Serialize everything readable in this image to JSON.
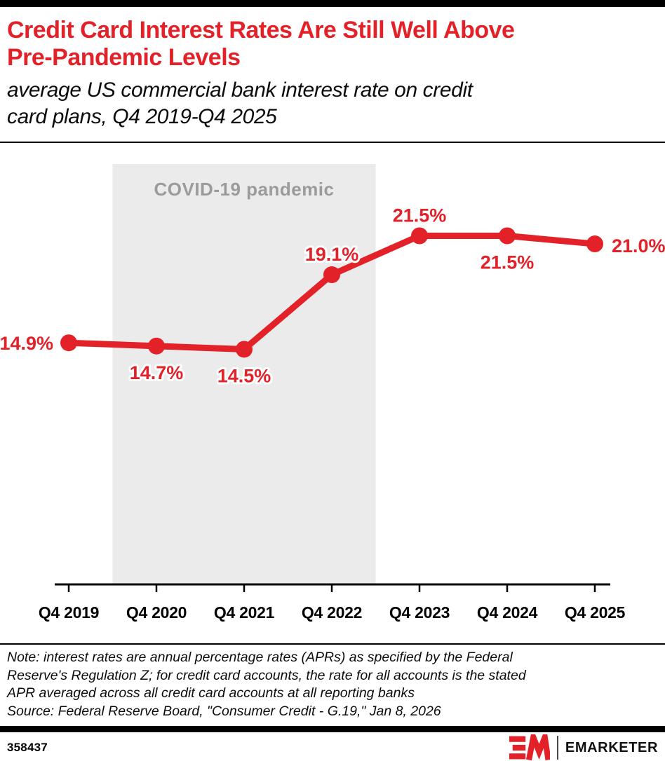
{
  "header": {
    "title_lines": [
      "Credit Card Interest Rates Are Still Well Above",
      "Pre-Pandemic Levels"
    ],
    "subtitle_lines": [
      "average US commercial bank interest rate on credit",
      "card plans, Q4 2019-Q4 2025"
    ]
  },
  "chart_data": {
    "type": "line",
    "title": "Credit Card Interest Rates Are Still Well Above Pre-Pandemic Levels",
    "subtitle": "average US commercial bank interest rate on credit card plans, Q4 2019-Q4 2025",
    "categories": [
      "Q4 2019",
      "Q4 2020",
      "Q4 2021",
      "Q4 2022",
      "Q4 2023",
      "Q4 2024",
      "Q4 2025"
    ],
    "series": [
      {
        "name": "Average US commercial bank interest rate on credit card plans",
        "values": [
          14.9,
          14.7,
          14.5,
          19.1,
          21.5,
          21.5,
          21.0
        ]
      }
    ],
    "data_labels": [
      "14.9%",
      "14.7%",
      "14.5%",
      "19.1%",
      "21.5%",
      "21.5%",
      "21.0%"
    ],
    "label_positions": [
      "left",
      "below",
      "below",
      "above",
      "above",
      "below",
      "right"
    ],
    "unit": "%",
    "ylim": [
      0,
      27
    ],
    "grid": false,
    "legend": "none",
    "annotation_band": {
      "label": "COVID-19 pandemic",
      "from_index": 0.5,
      "to_index": 3.5
    },
    "line_color": "#E32128",
    "band_color": "#EBEBEB",
    "band_label_color": "#9B9B9B"
  },
  "footer": {
    "note_lines": [
      "Note: interest rates are annual percentage rates (APRs) as specified by the Federal",
      "Reserve's Regulation Z; for credit card accounts, the rate for all accounts is the stated",
      "APR averaged across all credit card accounts at all reporting banks"
    ],
    "source": "Source: Federal Reserve Board, \"Consumer Credit - G.19,\" Jan 8, 2026",
    "chart_id": "358437",
    "brand": "EMARKETER"
  }
}
